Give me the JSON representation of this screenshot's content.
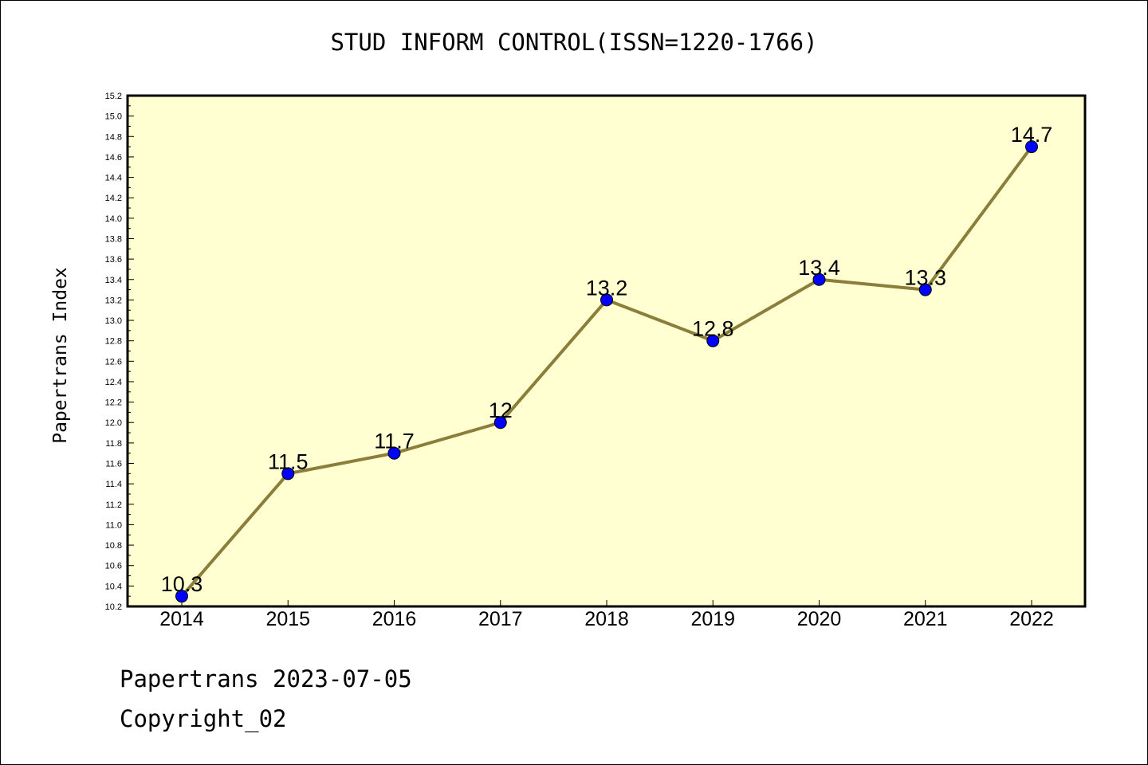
{
  "title": "STUD INFORM CONTROL(ISSN=1220-1766)",
  "footer": {
    "line1": "Papertrans 2023-07-05",
    "line2": "Copyright_02"
  },
  "colors": {
    "plot_background": "#ffffd2",
    "line": "#8b7d3a",
    "marker": "#0000ff"
  },
  "chart_data": {
    "type": "line",
    "title": "STUD INFORM CONTROL(ISSN=1220-1766)",
    "xlabel": "",
    "ylabel": "Papertrans Index",
    "categories": [
      "2014",
      "2015",
      "2016",
      "2017",
      "2018",
      "2019",
      "2020",
      "2021",
      "2022"
    ],
    "values": [
      10.3,
      11.5,
      11.7,
      12,
      13.2,
      12.8,
      13.4,
      13.3,
      14.7
    ],
    "data_labels": [
      "10.3",
      "11.5",
      "11.7",
      "12",
      "13.2",
      "12.8",
      "13.4",
      "13.3",
      "14.7"
    ],
    "ylim": [
      10.2,
      15.2
    ],
    "ytick_step": 0.2,
    "grid": false,
    "legend": "none"
  }
}
